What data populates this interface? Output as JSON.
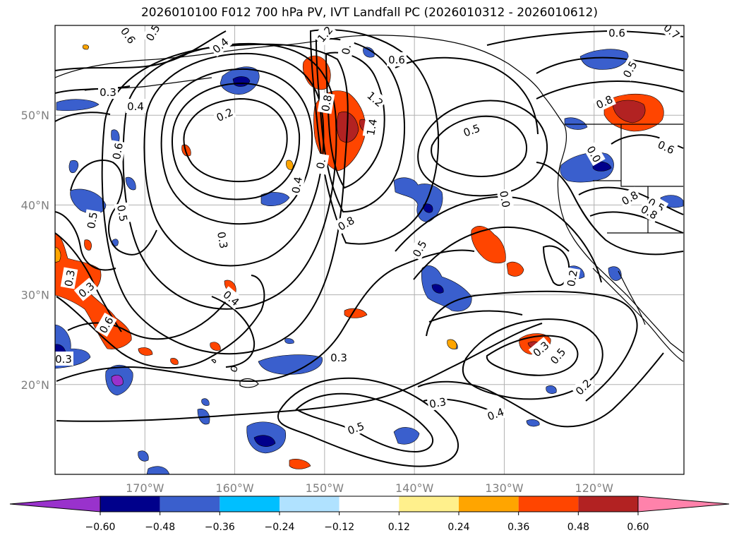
{
  "title": "2026010100 F012 700 hPa PV, IVT Landfall PC (2026010312 - 2026010612)",
  "map": {
    "lon_range": [
      -180,
      -110
    ],
    "lat_range": [
      10,
      60
    ],
    "lon_ticks": [
      "170°W",
      "160°W",
      "150°W",
      "140°W",
      "130°W",
      "120°W"
    ],
    "lat_ticks": [
      "50°N",
      "40°N",
      "30°N",
      "20°N"
    ],
    "grid": true
  },
  "colorbar": {
    "extend": "both",
    "tick_labels": [
      "−0.60",
      "−0.48",
      "−0.36",
      "−0.24",
      "−0.12",
      "0.12",
      "0.24",
      "0.36",
      "0.48",
      "0.60"
    ],
    "colors": [
      "#9932cc",
      "#00008b",
      "#3a5fcd",
      "#00bfff",
      "#b0e2ff",
      "#ffffff",
      "#fff08c",
      "#ffa500",
      "#ff4500",
      "#b22222",
      "#ff82ab"
    ]
  },
  "contour_labels": [
    {
      "text": "0.6"
    },
    {
      "text": "0.5"
    },
    {
      "text": "0.4"
    },
    {
      "text": "1.2"
    },
    {
      "text": "0."
    },
    {
      "text": "0.6"
    },
    {
      "text": "0.6"
    },
    {
      "text": "0.7"
    },
    {
      "text": "0.5"
    },
    {
      "text": "0.3"
    },
    {
      "text": "0.4"
    },
    {
      "text": "0.2"
    },
    {
      "text": "0.8"
    },
    {
      "text": "1.2"
    },
    {
      "text": "1.4"
    },
    {
      "text": "0.8"
    },
    {
      "text": "0.5"
    },
    {
      "text": "0.6"
    },
    {
      "text": "0.6"
    },
    {
      "text": "0."
    },
    {
      "text": "0.4"
    },
    {
      "text": "0.8"
    },
    {
      "text": "0.0"
    },
    {
      "text": "0.8"
    },
    {
      "text": "0.5"
    },
    {
      "text": "0.5"
    },
    {
      "text": "0.3"
    },
    {
      "text": "0.5"
    },
    {
      "text": "0.3"
    },
    {
      "text": "0.4"
    },
    {
      "text": "0.6"
    },
    {
      "text": "0.3"
    },
    {
      "text": "0.3"
    },
    {
      "text": "0.3"
    },
    {
      "text": "0.3"
    },
    {
      "text": "0.5"
    },
    {
      "text": "0.4"
    },
    {
      "text": "0.2"
    },
    {
      "text": "0.3"
    },
    {
      "text": "0.5"
    },
    {
      "text": "0.0"
    },
    {
      "text": "0.2"
    },
    {
      "text": "0.5"
    },
    {
      "text": "0.8"
    }
  ]
}
